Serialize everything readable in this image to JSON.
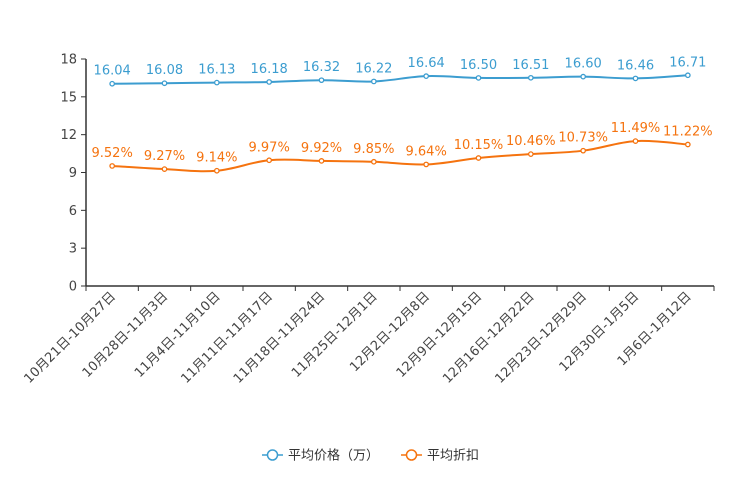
{
  "colors": {
    "series1": "#3c9dd0",
    "series2": "#f5730f",
    "axis": "#333333",
    "tick_text": "#444444",
    "legend_text": "#333333"
  },
  "chart_data": {
    "type": "line",
    "title": "",
    "xlabel": "",
    "ylabel": "",
    "ylim": [
      0,
      18
    ],
    "yticks": [
      0,
      3,
      6,
      9,
      12,
      15,
      18
    ],
    "ytick_labels": [
      "0",
      "3",
      "6",
      "9",
      "12",
      "15",
      "18"
    ],
    "grid": false,
    "legend_position": "bottom-center",
    "categories": [
      "10月21日-10月27日",
      "10月28日-11月3日",
      "11月4日-11月10日",
      "11月11日-11月17日",
      "11月18日-11月24日",
      "11月25日-12月1日",
      "12月2日-12月8日",
      "12月9日-12月15日",
      "12月16日-12月22日",
      "12月23日-12月29日",
      "12月30日-1月5日",
      "1月6日-1月12日"
    ],
    "series": [
      {
        "name": "平均价格（万）",
        "values": [
          16.04,
          16.08,
          16.13,
          16.18,
          16.32,
          16.22,
          16.64,
          16.5,
          16.51,
          16.6,
          16.46,
          16.71
        ],
        "labels": [
          "16.04",
          "16.08",
          "16.13",
          "16.18",
          "16.32",
          "16.22",
          "16.64",
          "16.50",
          "16.51",
          "16.60",
          "16.46",
          "16.71"
        ]
      },
      {
        "name": "平均折扣",
        "values": [
          9.52,
          9.27,
          9.14,
          9.97,
          9.92,
          9.85,
          9.64,
          10.15,
          10.46,
          10.73,
          11.49,
          11.22
        ],
        "labels": [
          "9.52%",
          "9.27%",
          "9.14%",
          "9.97%",
          "9.92%",
          "9.85%",
          "9.64%",
          "10.15%",
          "10.46%",
          "10.73%",
          "11.49%",
          "11.22%"
        ]
      }
    ]
  }
}
